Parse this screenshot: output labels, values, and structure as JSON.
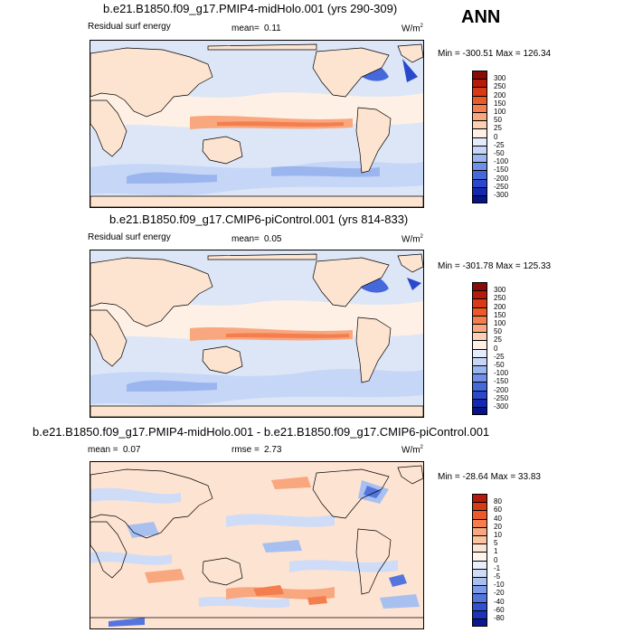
{
  "season": "ANN",
  "panels": [
    {
      "title": "b.e21.B1850.f09_g17.PMIP4-midHolo.001 (yrs 290-309)",
      "variable": "Residual surf energy",
      "stat_label": "mean=",
      "stat_value": "0.11",
      "units": "W/m",
      "units_sup": "2",
      "minmax": "Min = -300.51 Max = 126.34",
      "levels": [
        "300",
        "250",
        "200",
        "150",
        "100",
        "50",
        "25",
        "0",
        "-25",
        "-50",
        "-100",
        "-150",
        "-200",
        "-250",
        "-300"
      ],
      "colors": [
        "#8b0a05",
        "#b51a0b",
        "#d93a15",
        "#ec5a2a",
        "#f47e4e",
        "#f8a77e",
        "#fcd0b2",
        "#fef0e4",
        "#e4ecfb",
        "#c6d6f6",
        "#9bb6ee",
        "#6f90e6",
        "#4568db",
        "#2a48cc",
        "#1428b0",
        "#08138a"
      ]
    },
    {
      "title": "b.e21.B1850.f09_g17.CMIP6-piControl.001 (yrs 814-833)",
      "variable": "Residual surf energy",
      "stat_label": "mean=",
      "stat_value": "0.05",
      "units": "W/m",
      "units_sup": "2",
      "minmax": "Min = -301.78 Max = 125.33",
      "levels": [
        "300",
        "250",
        "200",
        "150",
        "100",
        "50",
        "25",
        "0",
        "-25",
        "-50",
        "-100",
        "-150",
        "-200",
        "-250",
        "-300"
      ],
      "colors": [
        "#8b0a05",
        "#b51a0b",
        "#d93a15",
        "#ec5a2a",
        "#f47e4e",
        "#f8a77e",
        "#fcd0b2",
        "#fef0e4",
        "#e4ecfb",
        "#c6d6f6",
        "#9bb6ee",
        "#6f90e6",
        "#4568db",
        "#2a48cc",
        "#1428b0",
        "#08138a"
      ]
    },
    {
      "title": "b.e21.B1850.f09_g17.PMIP4-midHolo.001 - b.e21.B1850.f09_g17.CMIP6-piControl.001",
      "stat_label": "mean =",
      "stat_value": "0.07",
      "rmse_label": "rmse =",
      "rmse_value": "2.73",
      "units": "W/m",
      "units_sup": "2",
      "minmax": "Min = -28.64 Max =  33.83",
      "levels": [
        "80",
        "60",
        "40",
        "20",
        "10",
        "5",
        "1",
        "0",
        "-1",
        "-5",
        "-10",
        "-20",
        "-40",
        "-60",
        "-80"
      ],
      "colors": [
        "#b51a0b",
        "#d93a15",
        "#ec5a2a",
        "#f47e4e",
        "#f8a77e",
        "#fcc3a2",
        "#fde3d2",
        "#fff5ee",
        "#e8eefb",
        "#cfdcf7",
        "#a8c0f0",
        "#7d9ae8",
        "#5575de",
        "#3352d2",
        "#1c34b8",
        "#0c1a90"
      ]
    }
  ],
  "colors": {
    "land": "#fde4d0",
    "ocean_light": "#dce6f7",
    "coast": "#000000"
  }
}
